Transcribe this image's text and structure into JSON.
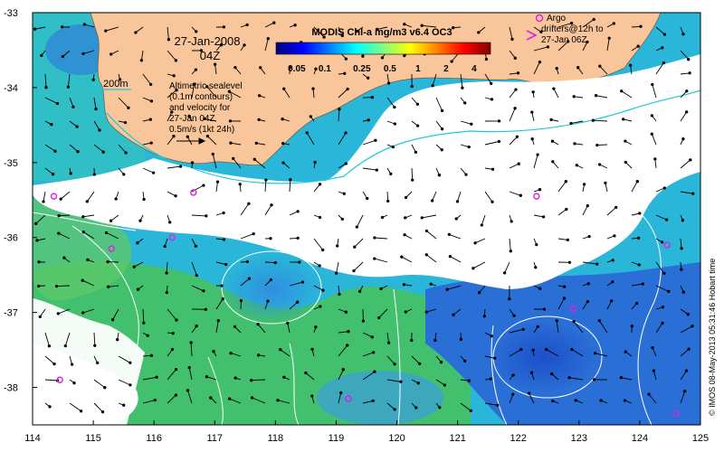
{
  "map": {
    "date": "27-Jan-2008",
    "time": "04Z",
    "contour_label": "200m",
    "sealevel_note": [
      "Altimetric sealevel",
      "(0.1m contours)",
      "and velocity for",
      "27-Jan 04Z",
      "0.5m/s (1kt 24h)"
    ],
    "argo_legend": [
      "Argo",
      "drifters@12h to",
      "27-Jan 06Z"
    ],
    "credit": "© IMOS 08-May-2013 05:31:46 Hobart time",
    "x_ticks": [
      "114",
      "115",
      "116",
      "117",
      "118",
      "119",
      "120",
      "121",
      "122",
      "123",
      "124",
      "125"
    ],
    "y_ticks": [
      "-33",
      "-34",
      "-35",
      "-36",
      "-37",
      "-38"
    ],
    "lon_range": [
      114,
      125
    ],
    "lat_range": [
      -38.5,
      -33
    ]
  },
  "colorbar": {
    "title": "MODIS Chl-a mg/m3 v6.4 OC3",
    "tick_labels": [
      "0.05",
      "0.1",
      "0.25",
      "0.5",
      "1",
      "2",
      "4"
    ],
    "colors": [
      "#00007f",
      "#0000ff",
      "#0080ff",
      "#00ffff",
      "#80ff80",
      "#ffff00",
      "#ff8000",
      "#ff0000",
      "#7f0000"
    ]
  },
  "colors": {
    "land": "#f9c59a",
    "cloud": "#ffffff",
    "ocean_deep": "#2a6fd6",
    "ocean_mid": "#29b6d8",
    "ocean_green": "#47c25a",
    "drifter": "#e020e0",
    "isobath": "#20c8d8",
    "sealevel_contour": "#ffffff",
    "vector": "#000000"
  },
  "drifters": [
    {
      "lon": 114.35,
      "lat": -35.45
    },
    {
      "lon": 115.3,
      "lat": -36.15
    },
    {
      "lon": 116.3,
      "lat": -36.0
    },
    {
      "lon": 116.65,
      "lat": -35.4
    },
    {
      "lon": 114.45,
      "lat": -37.9
    },
    {
      "lon": 119.2,
      "lat": -38.15
    },
    {
      "lon": 122.3,
      "lat": -35.45
    },
    {
      "lon": 124.45,
      "lat": -36.1
    },
    {
      "lon": 122.9,
      "lat": -36.95
    },
    {
      "lon": 124.6,
      "lat": -38.35
    }
  ]
}
